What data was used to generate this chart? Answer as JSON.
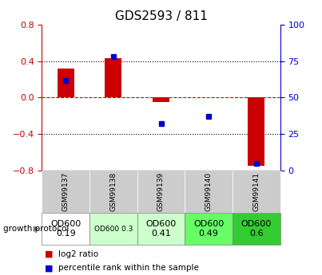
{
  "title": "GDS2593 / 811",
  "samples": [
    "GSM99137",
    "GSM99138",
    "GSM99139",
    "GSM99140",
    "GSM99141"
  ],
  "log2_ratio": [
    0.32,
    0.43,
    -0.05,
    0.0,
    -0.75
  ],
  "percentile_rank": [
    62,
    78,
    32,
    37,
    5
  ],
  "ylim_left": [
    -0.8,
    0.8
  ],
  "ylim_right": [
    0,
    100
  ],
  "yticks_left": [
    -0.8,
    -0.4,
    0.0,
    0.4,
    0.8
  ],
  "yticks_right": [
    0,
    25,
    50,
    75,
    100
  ],
  "bar_color": "#cc0000",
  "dot_color": "#0000cc",
  "zero_line_color": "#cc0000",
  "protocol_labels": [
    "OD600\n0.19",
    "OD600 0.3",
    "OD600\n0.41",
    "OD600\n0.49",
    "OD600\n0.6"
  ],
  "protocol_colors": [
    "#ffffff",
    "#ccffcc",
    "#ccffcc",
    "#66ff66",
    "#33cc33"
  ],
  "protocol_text_sizes": [
    8,
    6.5,
    8,
    8,
    8
  ],
  "sample_bg_color": "#cccccc",
  "legend_red": "log2 ratio",
  "legend_blue": "percentile rank within the sample"
}
